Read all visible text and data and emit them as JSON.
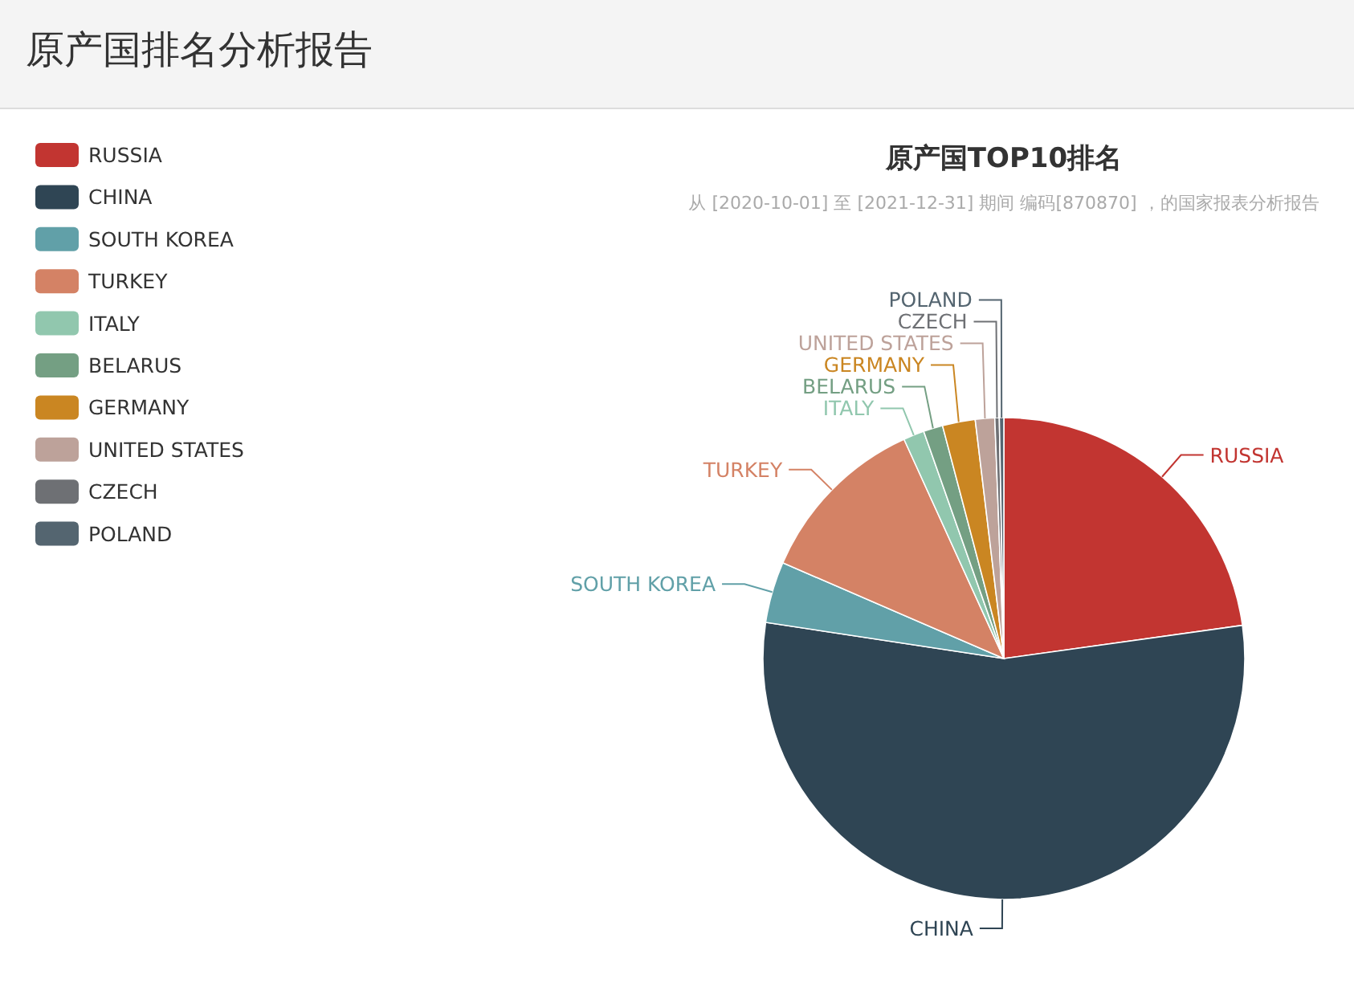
{
  "chart_data": {
    "type": "pie",
    "title": "原产国TOP10排名",
    "subtitle": "从 [2020-10-01] 至 [2021-12-31] 期间 编码[870870] ，的国家报表分析报告",
    "annotations": [
      "原产国排名分析报告"
    ],
    "categories": [
      "RUSSIA",
      "CHINA",
      "SOUTH KOREA",
      "TURKEY",
      "ITALY",
      "BELARUS",
      "GERMANY",
      "UNITED STATES",
      "CZECH",
      "POLAND"
    ],
    "values": [
      22.8,
      54.6,
      4.1,
      11.7,
      1.4,
      1.3,
      2.2,
      1.3,
      0.3,
      0.3
    ],
    "colors": [
      "#c23531",
      "#2f4554",
      "#61a0a8",
      "#d48265",
      "#91c7ae",
      "#749f83",
      "#ca8622",
      "#bda29a",
      "#6e7074",
      "#546570"
    ],
    "legend": "left"
  }
}
